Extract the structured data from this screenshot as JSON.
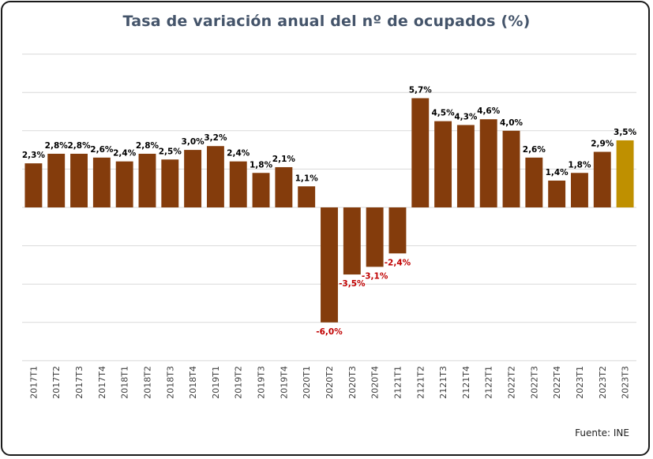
{
  "colors": {
    "bar": "#843c0c",
    "bar_highlight": "#bf9000",
    "positive_label": "#000000",
    "negative_label": "#c00000",
    "title": "#44546a"
  },
  "chart_data": {
    "type": "bar",
    "title": "Tasa de variación anual del nº de ocupados  (%)",
    "source": "Fuente: INE",
    "xlabel": "",
    "ylabel": "",
    "ylim": [
      -8,
      8
    ],
    "grid": true,
    "legend": "none",
    "categories": [
      "2017T1",
      "2017T2",
      "2017T3",
      "2017T4",
      "2018T1",
      "2018T2",
      "2018T3",
      "2018T4",
      "2019T1",
      "2019T2",
      "2019T3",
      "2019T4",
      "2020T1",
      "2020T2",
      "2020T3",
      "2020T4",
      "2121T1",
      "2121T2",
      "2121T3",
      "2121T4",
      "2122T1",
      "2022T2",
      "2022T3",
      "2022T4",
      "2023T1",
      "2023T2",
      "2023T3"
    ],
    "values": [
      2.3,
      2.8,
      2.8,
      2.6,
      2.4,
      2.8,
      2.5,
      3.0,
      3.2,
      2.4,
      1.8,
      2.1,
      1.1,
      -6.0,
      -3.5,
      -3.1,
      -2.4,
      5.7,
      4.5,
      4.3,
      4.6,
      4.0,
      2.6,
      1.4,
      1.8,
      2.9,
      3.5
    ],
    "data_labels": [
      "2,3%",
      "2,8%",
      "2,8%",
      "2,6%",
      "2,4%",
      "2,8%",
      "2,5%",
      "3,0%",
      "3,2%",
      "2,4%",
      "1,8%",
      "2,1%",
      "1,1%",
      "-6,0%",
      "-3,5%",
      "-3,1%",
      "-2,4%",
      "5,7%",
      "4,5%",
      "4,3%",
      "4,6%",
      "4,0%",
      "2,6%",
      "1,4%",
      "1,8%",
      "2,9%",
      "3,5%"
    ],
    "highlight_index": 26
  }
}
